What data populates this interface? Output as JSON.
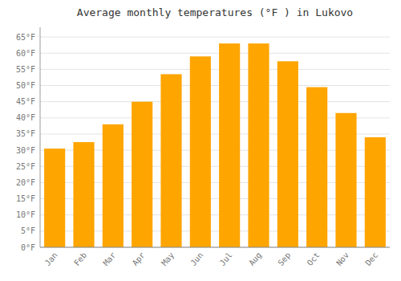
{
  "chart_data": {
    "type": "bar",
    "title": "Average monthly temperatures (°F ) in Lukovo",
    "categories": [
      "Jan",
      "Feb",
      "Mar",
      "Apr",
      "May",
      "Jun",
      "Jul",
      "Aug",
      "Sep",
      "Oct",
      "Nov",
      "Dec"
    ],
    "values": [
      30.5,
      32.5,
      38.0,
      45.0,
      53.5,
      59.0,
      63.0,
      63.0,
      57.5,
      49.5,
      41.5,
      34.0
    ],
    "color": "#FFA500",
    "ylim": [
      0,
      68
    ],
    "yticks": [
      {
        "value": 0,
        "label": "0°F"
      },
      {
        "value": 5,
        "label": "5°F"
      },
      {
        "value": 10,
        "label": "10°F"
      },
      {
        "value": 15,
        "label": "15°F"
      },
      {
        "value": 20,
        "label": "20°F"
      },
      {
        "value": 25,
        "label": "25°F"
      },
      {
        "value": 30,
        "label": "30°F"
      },
      {
        "value": 35,
        "label": "35°F"
      },
      {
        "value": 40,
        "label": "40°F"
      },
      {
        "value": 45,
        "label": "45°F"
      },
      {
        "value": 50,
        "label": "50°F"
      },
      {
        "value": 55,
        "label": "55°F"
      },
      {
        "value": 60,
        "label": "60°F"
      },
      {
        "value": 65,
        "label": "65°F"
      }
    ],
    "grid": true
  }
}
